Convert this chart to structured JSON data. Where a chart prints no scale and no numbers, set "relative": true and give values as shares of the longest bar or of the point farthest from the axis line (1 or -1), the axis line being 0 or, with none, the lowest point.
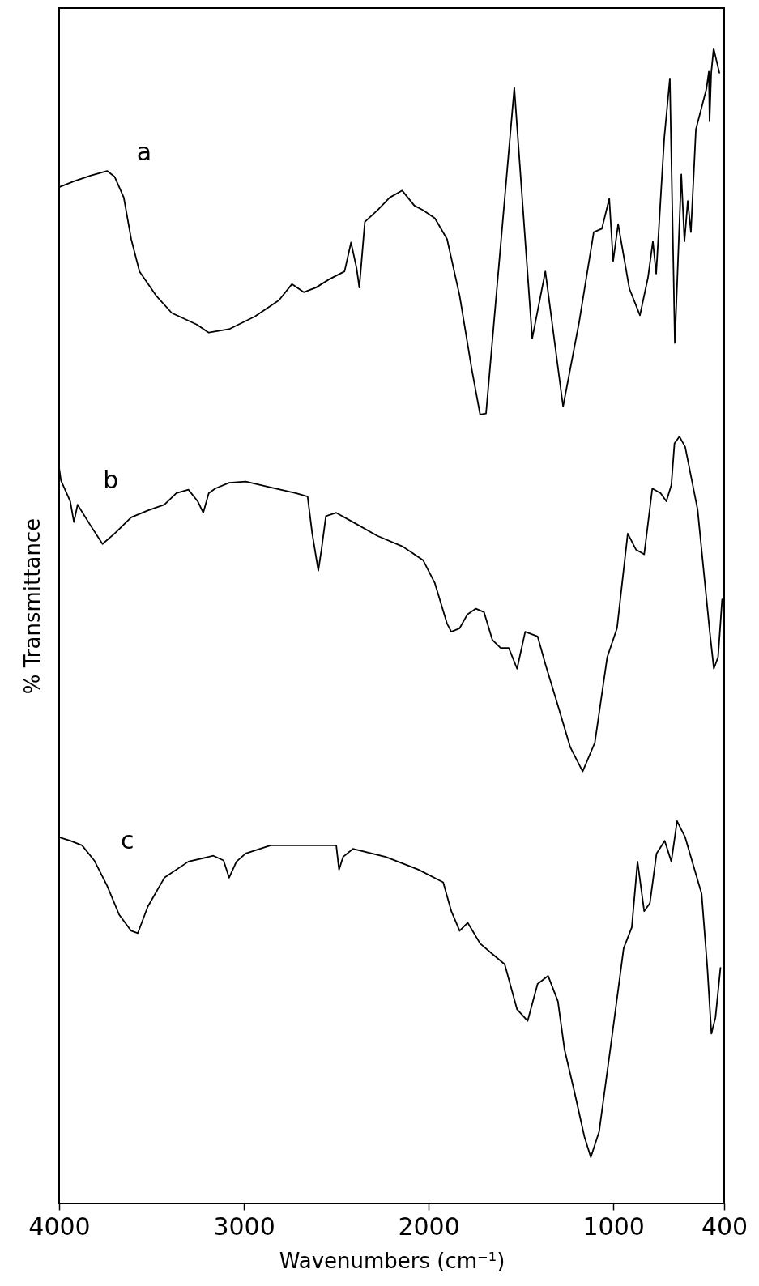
{
  "chart_data": {
    "type": "line",
    "relative": true,
    "xlabel": "Wavenumbers (cm⁻¹)",
    "ylabel": "% Transmittance",
    "xlim": [
      4000,
      400
    ],
    "xticks": [
      4000,
      3000,
      2000,
      1000,
      400
    ],
    "grid": false,
    "marker": "none",
    "line_style": "solid",
    "series": [
      {
        "name": "a",
        "color": "#000000",
        "x": [
          4000,
          3920,
          3830,
          3740,
          3700,
          3650,
          3610,
          3565,
          3475,
          3390,
          3255,
          3190,
          3080,
          2940,
          2810,
          2740,
          2676,
          2610,
          2540,
          2455,
          2420,
          2390,
          2375,
          2345,
          2277,
          2210,
          2143,
          2077,
          2030,
          1966,
          1900,
          1832,
          1766,
          1721,
          1689,
          1536,
          1439,
          1368,
          1272,
          1184,
          1106,
          1062,
          1022,
          1001,
          974,
          913,
          856,
          812,
          786,
          768,
          738,
          724,
          694,
          667,
          632,
          615,
          597,
          580,
          553,
          496,
          483,
          479,
          470,
          457,
          426
        ],
        "values": [
          0.88,
          0.885,
          0.89,
          0.894,
          0.889,
          0.871,
          0.835,
          0.807,
          0.786,
          0.771,
          0.761,
          0.754,
          0.757,
          0.768,
          0.782,
          0.796,
          0.789,
          0.793,
          0.8,
          0.807,
          0.832,
          0.81,
          0.793,
          0.85,
          0.86,
          0.871,
          0.877,
          0.864,
          0.86,
          0.853,
          0.835,
          0.786,
          0.722,
          0.683,
          0.684,
          0.966,
          0.749,
          0.807,
          0.69,
          0.764,
          0.841,
          0.844,
          0.87,
          0.816,
          0.848,
          0.792,
          0.769,
          0.802,
          0.833,
          0.805,
          0.886,
          0.923,
          0.974,
          0.745,
          0.891,
          0.833,
          0.868,
          0.841,
          0.93,
          0.965,
          0.98,
          0.937,
          0.979,
          1.0,
          0.979
        ]
      },
      {
        "name": "b",
        "color": "#000000",
        "x": [
          4000,
          3990,
          3940,
          3920,
          3900,
          3830,
          3765,
          3700,
          3610,
          3520,
          3430,
          3365,
          3300,
          3250,
          3220,
          3190,
          3155,
          3080,
          2990,
          2855,
          2720,
          2655,
          2630,
          2597,
          2580,
          2556,
          2500,
          2410,
          2277,
          2143,
          2030,
          1966,
          1900,
          1877,
          1832,
          1790,
          1744,
          1700,
          1655,
          1610,
          1566,
          1521,
          1477,
          1410,
          1366,
          1300,
          1233,
          1166,
          1100,
          1033,
          980,
          922,
          877,
          833,
          789,
          744,
          713,
          686,
          669,
          642,
          611,
          544,
          478,
          456,
          433,
          411
        ],
        "values": [
          0.637,
          0.626,
          0.608,
          0.59,
          0.605,
          0.587,
          0.571,
          0.58,
          0.594,
          0.6,
          0.605,
          0.615,
          0.618,
          0.608,
          0.598,
          0.615,
          0.619,
          0.624,
          0.625,
          0.62,
          0.615,
          0.612,
          0.58,
          0.548,
          0.566,
          0.595,
          0.598,
          0.59,
          0.578,
          0.569,
          0.557,
          0.537,
          0.502,
          0.495,
          0.498,
          0.51,
          0.515,
          0.512,
          0.488,
          0.481,
          0.481,
          0.463,
          0.495,
          0.491,
          0.466,
          0.431,
          0.395,
          0.374,
          0.399,
          0.473,
          0.498,
          0.58,
          0.566,
          0.562,
          0.619,
          0.615,
          0.608,
          0.622,
          0.658,
          0.664,
          0.655,
          0.601,
          0.495,
          0.463,
          0.473,
          0.523
        ]
      },
      {
        "name": "c",
        "color": "#000000",
        "x": [
          4000,
          3940,
          3876,
          3810,
          3740,
          3675,
          3610,
          3574,
          3520,
          3430,
          3300,
          3165,
          3110,
          3080,
          3040,
          2990,
          2855,
          2720,
          2500,
          2485,
          2463,
          2410,
          2232,
          2055,
          1921,
          1877,
          1832,
          1788,
          1721,
          1655,
          1588,
          1521,
          1464,
          1410,
          1353,
          1300,
          1264,
          1211,
          1157,
          1122,
          1077,
          1011,
          944,
          900,
          869,
          833,
          802,
          766,
          722,
          686,
          655,
          611,
          522,
          491,
          469,
          447,
          420
        ],
        "values": [
          0.317,
          0.314,
          0.31,
          0.297,
          0.275,
          0.25,
          0.236,
          0.234,
          0.257,
          0.282,
          0.296,
          0.301,
          0.297,
          0.282,
          0.296,
          0.303,
          0.31,
          0.31,
          0.31,
          0.289,
          0.3,
          0.307,
          0.3,
          0.289,
          0.278,
          0.253,
          0.236,
          0.243,
          0.225,
          0.216,
          0.207,
          0.168,
          0.158,
          0.19,
          0.197,
          0.175,
          0.133,
          0.097,
          0.058,
          0.04,
          0.062,
          0.14,
          0.221,
          0.239,
          0.296,
          0.253,
          0.26,
          0.303,
          0.314,
          0.296,
          0.331,
          0.317,
          0.268,
          0.204,
          0.147,
          0.161,
          0.204
        ]
      }
    ]
  }
}
